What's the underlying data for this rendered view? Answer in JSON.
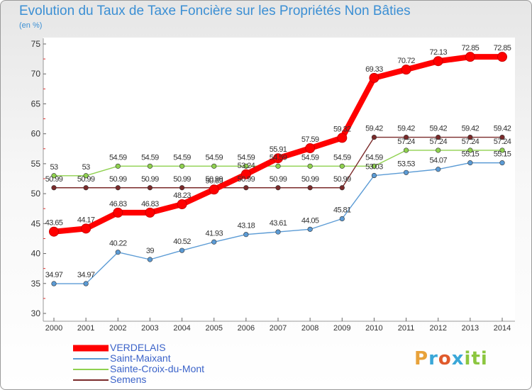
{
  "chart_data": {
    "type": "line",
    "title": "Evolution du Taux de Taxe Foncière sur les Propriétés Non Bâties",
    "subtitle": "(en %)",
    "xlabel": "",
    "ylabel": "(en %)",
    "x": [
      "2000",
      "2001",
      "2002",
      "2003",
      "2004",
      "2005",
      "2006",
      "2007",
      "2008",
      "2009",
      "2010",
      "2011",
      "2012",
      "2013",
      "2014"
    ],
    "ylim": [
      30,
      75
    ],
    "yticks": [
      "30",
      "35",
      "40",
      "45",
      "50",
      "55",
      "60",
      "65",
      "70",
      "75"
    ],
    "grid": false,
    "legend_position": "bottom-left",
    "series": [
      {
        "name": "VERDELAIS",
        "color": "#ff0000",
        "values": [
          43.65,
          44.17,
          46.83,
          46.83,
          48.23,
          50.69,
          53.24,
          55.91,
          57.59,
          59.32,
          69.33,
          70.72,
          72.13,
          72.85,
          72.85
        ],
        "labels": [
          "43.65",
          "44.17",
          "46.83",
          "46.83",
          "48.23",
          "50.69",
          "53.24",
          "55.91",
          "57.59",
          "59.32",
          "69.33",
          "70.72",
          "72.13",
          "72.85",
          "72.85"
        ]
      },
      {
        "name": "Saint-Maixant",
        "color": "#5b9bd5",
        "values": [
          34.97,
          34.97,
          40.22,
          39,
          40.52,
          41.93,
          43.18,
          43.61,
          44.05,
          45.81,
          53.03,
          53.53,
          54.07,
          55.15,
          55.15
        ],
        "labels": [
          "34.97",
          "34.97",
          "40.22",
          "39",
          "40.52",
          "41.93",
          "43.18",
          "43.61",
          "44.05",
          "45.81",
          "53.03",
          "53.53",
          "54.07",
          "55.15",
          "55.15"
        ]
      },
      {
        "name": "Sainte-Croix-du-Mont",
        "color": "#8fd14f",
        "values": [
          53,
          53,
          54.59,
          54.59,
          54.59,
          54.59,
          54.59,
          54.59,
          54.59,
          54.59,
          54.59,
          57.24,
          57.24,
          57.24,
          57.24
        ],
        "labels": [
          "53",
          "53",
          "54.59",
          "54.59",
          "54.59",
          "54.59",
          "54.59",
          "54.59",
          "54.59",
          "54.59",
          "54.59",
          "57.24",
          "57.24",
          "57.24",
          "57.24"
        ]
      },
      {
        "name": "Semens",
        "color": "#7a2a2a",
        "values": [
          50.99,
          50.99,
          50.99,
          50.99,
          50.99,
          50.99,
          50.99,
          50.99,
          50.99,
          50.99,
          59.42,
          59.42,
          59.42,
          59.42,
          59.42
        ],
        "labels": [
          "50.99",
          "50.99",
          "50.99",
          "50.99",
          "50.99",
          "50.99",
          "50.99",
          "50.99",
          "50.99",
          "50.99",
          "59.42",
          "59.42",
          "59.42",
          "59.42",
          "59.42"
        ]
      }
    ]
  },
  "logo": {
    "letters": [
      "P",
      "r",
      "o",
      "x",
      "i",
      "t",
      "i"
    ]
  }
}
